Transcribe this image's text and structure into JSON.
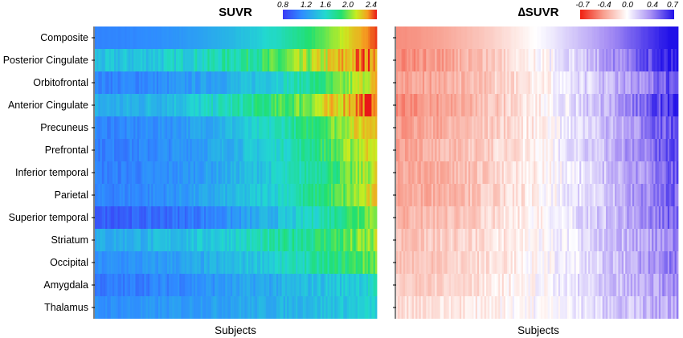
{
  "chart_data": [
    {
      "type": "heatmap",
      "title": "SUVR",
      "xlabel": "Subjects",
      "ylabel": "",
      "rows": [
        "Composite",
        "Posterior Cingulate",
        "Orbitofrontal",
        "Anterior Cingulate",
        "Precuneus",
        "Prefrontal",
        "Inferior temporal",
        "Parietal",
        "Superior temporal",
        "Striatum",
        "Occipital",
        "Amygdala",
        "Thalamus"
      ],
      "colorbar": {
        "ticks": [
          "0.8",
          "1.2",
          "1.6",
          "2.0",
          "2.4"
        ],
        "range": [
          0.8,
          2.45
        ],
        "colormap": "jet"
      },
      "row_profiles": [
        {
          "row": "Composite",
          "start": 1.1,
          "end": 2.4,
          "curve": 2.2,
          "noise": 0.02
        },
        {
          "row": "Posterior Cingulate",
          "start": 1.4,
          "end": 2.4,
          "curve": 1.8,
          "noise": 0.18
        },
        {
          "row": "Orbitofrontal",
          "start": 1.1,
          "end": 2.2,
          "curve": 2.2,
          "noise": 0.12
        },
        {
          "row": "Anterior Cingulate",
          "start": 1.3,
          "end": 2.45,
          "curve": 1.8,
          "noise": 0.16
        },
        {
          "row": "Precuneus",
          "start": 1.1,
          "end": 2.3,
          "curve": 2.0,
          "noise": 0.12
        },
        {
          "row": "Prefrontal",
          "start": 1.08,
          "end": 2.2,
          "curve": 2.0,
          "noise": 0.12
        },
        {
          "row": "Inferior temporal",
          "start": 1.08,
          "end": 2.1,
          "curve": 2.0,
          "noise": 0.12
        },
        {
          "row": "Parietal",
          "start": 1.1,
          "end": 2.15,
          "curve": 2.0,
          "noise": 0.12
        },
        {
          "row": "Superior temporal",
          "start": 0.95,
          "end": 2.05,
          "curve": 2.2,
          "noise": 0.12
        },
        {
          "row": "Striatum",
          "start": 1.3,
          "end": 2.0,
          "curve": 1.6,
          "noise": 0.15
        },
        {
          "row": "Occipital",
          "start": 1.15,
          "end": 1.95,
          "curve": 1.8,
          "noise": 0.12
        },
        {
          "row": "Amygdala",
          "start": 1.05,
          "end": 1.55,
          "curve": 1.5,
          "noise": 0.12
        },
        {
          "row": "Thalamus",
          "start": 1.15,
          "end": 1.5,
          "curve": 1.5,
          "noise": 0.1
        }
      ]
    },
    {
      "type": "heatmap",
      "title": "∆SUVR",
      "xlabel": "Subjects",
      "ylabel": "",
      "rows": [
        "Composite",
        "Posterior Cingulate",
        "Orbitofrontal",
        "Anterior Cingulate",
        "Precuneus",
        "Prefrontal",
        "Inferior temporal",
        "Parietal",
        "Superior temporal",
        "Striatum",
        "Occipital",
        "Amygdala",
        "Thalamus"
      ],
      "colorbar": {
        "ticks": [
          "-0.7",
          "-0.4",
          "0.0",
          "0.4",
          "0.7"
        ],
        "range": [
          -0.7,
          0.7
        ],
        "colormap": "red-white-blue"
      },
      "row_profiles": [
        {
          "row": "Composite",
          "start": -0.4,
          "end": 0.75,
          "curve": 1.5,
          "noise": 0.01
        },
        {
          "row": "Posterior Cingulate",
          "start": -0.4,
          "end": 0.7,
          "curve": 1.6,
          "noise": 0.12
        },
        {
          "row": "Orbitofrontal",
          "start": -0.35,
          "end": 0.55,
          "curve": 1.6,
          "noise": 0.12
        },
        {
          "row": "Anterior Cingulate",
          "start": -0.4,
          "end": 0.65,
          "curve": 1.6,
          "noise": 0.12
        },
        {
          "row": "Precuneus",
          "start": -0.35,
          "end": 0.55,
          "curve": 1.6,
          "noise": 0.12
        },
        {
          "row": "Prefrontal",
          "start": -0.32,
          "end": 0.55,
          "curve": 1.6,
          "noise": 0.12
        },
        {
          "row": "Inferior temporal",
          "start": -0.32,
          "end": 0.5,
          "curve": 1.6,
          "noise": 0.12
        },
        {
          "row": "Parietal",
          "start": -0.32,
          "end": 0.5,
          "curve": 1.6,
          "noise": 0.12
        },
        {
          "row": "Superior temporal",
          "start": -0.28,
          "end": 0.48,
          "curve": 1.6,
          "noise": 0.12
        },
        {
          "row": "Striatum",
          "start": -0.22,
          "end": 0.4,
          "curve": 1.6,
          "noise": 0.12
        },
        {
          "row": "Occipital",
          "start": -0.22,
          "end": 0.4,
          "curve": 1.6,
          "noise": 0.12
        },
        {
          "row": "Amygdala",
          "start": -0.18,
          "end": 0.35,
          "curve": 1.6,
          "noise": 0.12
        },
        {
          "row": "Thalamus",
          "start": -0.12,
          "end": 0.3,
          "curve": 1.6,
          "noise": 0.12
        }
      ]
    }
  ]
}
